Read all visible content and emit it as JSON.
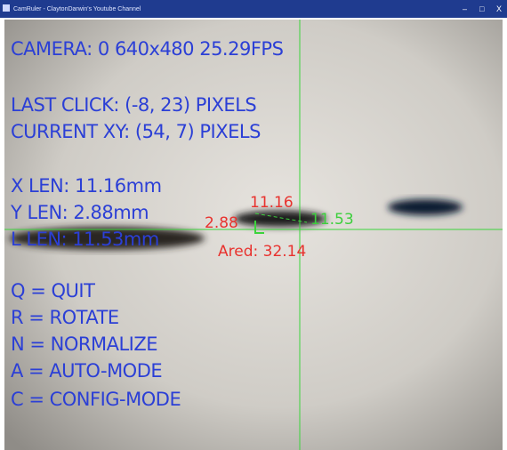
{
  "title_bar": {
    "title": "CamRuler - ClaytonDarwin's Youtube Channel",
    "minimize": "–",
    "maximize": "□",
    "close": "X"
  },
  "overlay": {
    "status": [
      "CAMERA: 0 640x480 25.29FPS",
      "LAST CLICK: (-8, 23) PIXELS",
      "CURRENT XY: (54, 7) PIXELS"
    ],
    "lengths": [
      "X LEN: 11.16mm",
      "Y LEN: 2.88mm",
      "L LEN: 11.53mm"
    ],
    "keys": [
      "Q = QUIT",
      "R = ROTATE",
      "N = NORMALIZE",
      "A = AUTO-MODE",
      "C = CONFIG-MODE"
    ]
  },
  "measurement": {
    "x_len": "11.16",
    "y_len": "2.88",
    "l_len": "11.53",
    "area": "Ared: 32.14"
  }
}
